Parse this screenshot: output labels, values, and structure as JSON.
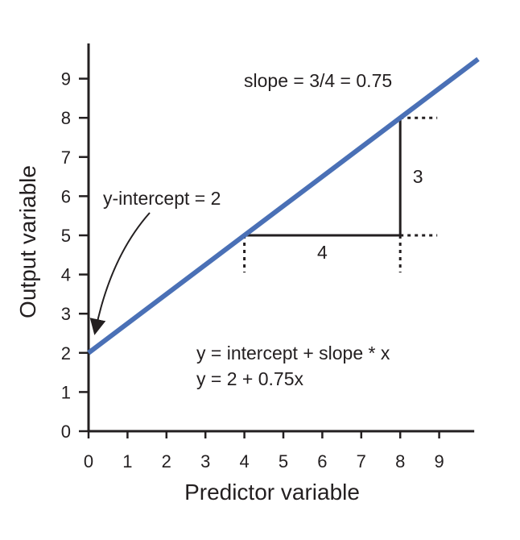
{
  "chart_data": {
    "type": "line",
    "xlabel": "Predictor variable",
    "ylabel": "Output variable",
    "xlim": [
      0,
      10
    ],
    "ylim": [
      0,
      9.9
    ],
    "x_ticks": [
      "0",
      "1",
      "2",
      "3",
      "4",
      "5",
      "6",
      "7",
      "8",
      "9"
    ],
    "y_ticks": [
      "0",
      "1",
      "2",
      "3",
      "4",
      "5",
      "6",
      "7",
      "8",
      "9"
    ],
    "grid": false,
    "series": [
      {
        "intercept": 2,
        "slope": 0.75,
        "x": [
          0,
          10
        ],
        "y": [
          2,
          9.5
        ],
        "color": "#4a70b6"
      }
    ],
    "slope_triangle": {
      "x0": 4,
      "x1": 8,
      "y0": 5,
      "y1": 8,
      "run_label": "4",
      "rise_label": "3"
    },
    "annotations": {
      "slope": "slope = 3/4 = 0.75",
      "intercept": "y-intercept = 2",
      "formula": "y = intercept + slope * x",
      "equation": "y = 2 + 0.75x"
    },
    "colors": {
      "line": "#4a70b6",
      "axis": "#231f20"
    }
  }
}
